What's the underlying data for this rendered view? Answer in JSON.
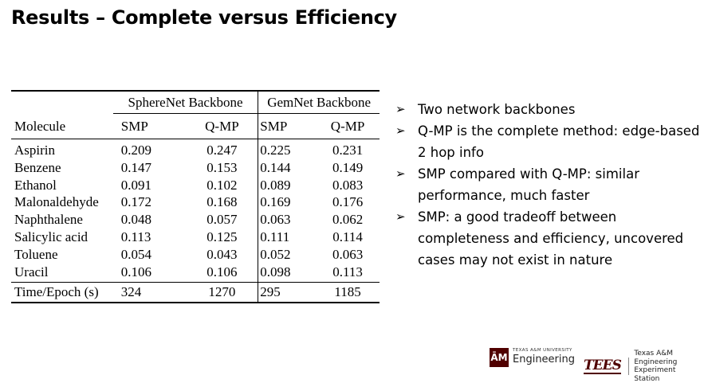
{
  "title": "Results – Complete versus Efficiency",
  "table": {
    "group_headers": [
      "SphereNet Backbone",
      "GemNet Backbone"
    ],
    "columns": [
      "Molecule",
      "SMP",
      "Q-MP",
      "SMP",
      "Q-MP"
    ],
    "rows": [
      [
        "Aspirin",
        "0.209",
        "0.247",
        "0.225",
        "0.231"
      ],
      [
        "Benzene",
        "0.147",
        "0.153",
        "0.144",
        "0.149"
      ],
      [
        "Ethanol",
        "0.091",
        "0.102",
        "0.089",
        "0.083"
      ],
      [
        "Malonaldehyde",
        "0.172",
        "0.168",
        "0.169",
        "0.176"
      ],
      [
        "Naphthalene",
        "0.048",
        "0.057",
        "0.063",
        "0.062"
      ],
      [
        "Salicylic acid",
        "0.113",
        "0.125",
        "0.111",
        "0.114"
      ],
      [
        "Toluene",
        "0.054",
        "0.043",
        "0.052",
        "0.063"
      ],
      [
        "Uracil",
        "0.106",
        "0.106",
        "0.098",
        "0.113"
      ]
    ],
    "time_row": [
      "Time/Epoch (s)",
      "324",
      "1270",
      "295",
      "1185"
    ]
  },
  "bullets": [
    "Two network backbones",
    "Q-MP is the complete method: edge-based 2 hop info",
    "SMP compared with Q-MP: similar performance, much faster",
    "SMP: a good tradeoff between completeness and efficiency, uncovered cases may not exist in nature"
  ],
  "bullet_glyph": "➢",
  "logos": {
    "tamu_mark": "ĀM",
    "tamu_small": "TEXAS A&M UNIVERSITY",
    "tamu_engineering": "Engineering",
    "tees_mark": "TEES",
    "tees_line1": "Texas A&M Engineering",
    "tees_line2": "Experiment Station"
  },
  "colors": {
    "maroon": "#500000"
  }
}
